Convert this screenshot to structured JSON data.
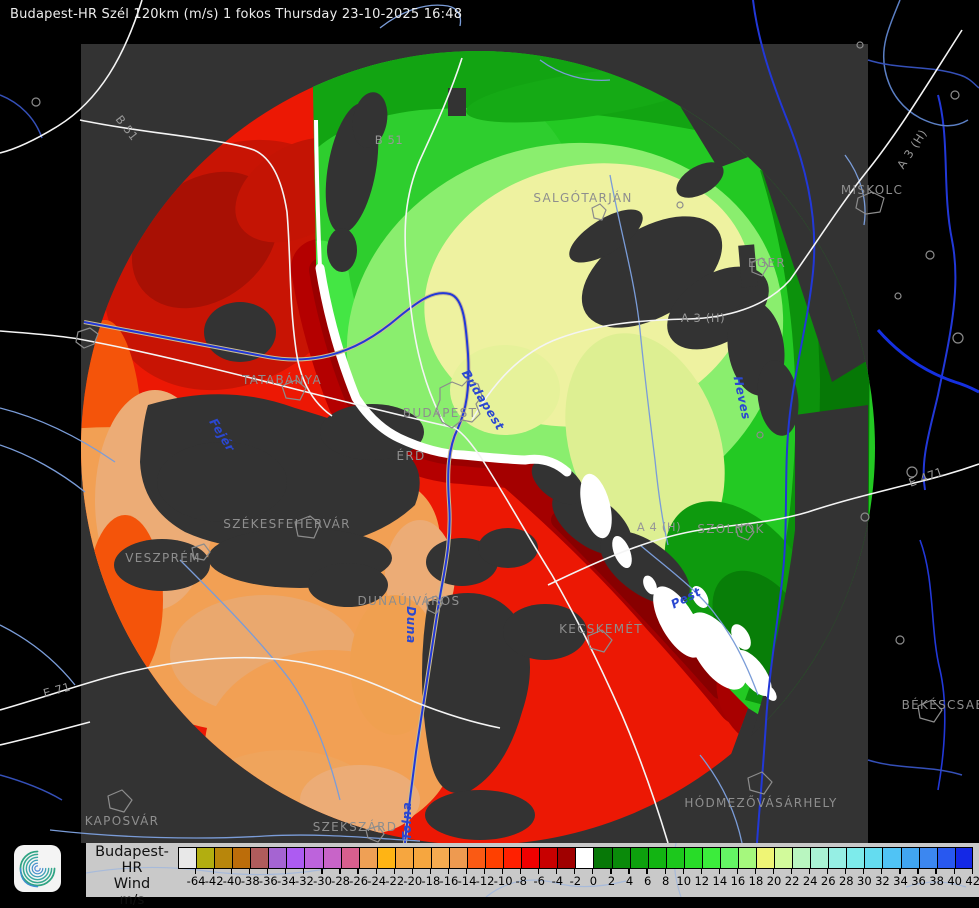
{
  "header": {
    "title": "Budapest-HR Szél 120km (m/s) 1 fokos Thursday 23-10-2025 16:48"
  },
  "map": {
    "city_labels": [
      "SALGÓTARJÁN",
      "MISKOLC",
      "EGER",
      "TATABÁNYA",
      "BUDAPEST",
      "ÉRD",
      "SZÉKESFEHÉRVÁR",
      "VESZPRÉM",
      "DUNAÚJVÁROS",
      "SZOLNOK",
      "KECSKEMÉT",
      "HÓDMEZŐVÁSÁRHELY",
      "KAPOSVÁR",
      "SZEKSZÁRD",
      "BÉKÉSCSABA"
    ],
    "road_labels": [
      "B 51",
      "B 51",
      "A 3 (H)",
      "A 3 (H)",
      "A 4 (H)",
      "E 471",
      "E 71"
    ],
    "water_labels": [
      "Budapest",
      "Pest",
      "Tolna",
      "Heves",
      "Fejér",
      "Duna"
    ]
  },
  "legend": {
    "source": "Budapest-HR",
    "product": "Wind",
    "unit": "m/s",
    "ticks": [
      "-64",
      "-42",
      "-40",
      "-38",
      "-36",
      "-34",
      "-32",
      "-30",
      "-28",
      "-26",
      "-24",
      "-22",
      "-20",
      "-18",
      "-16",
      "-14",
      "-12",
      "-10",
      "-8",
      "-6",
      "-4",
      "-2",
      "0",
      "2",
      "4",
      "6",
      "8",
      "10",
      "12",
      "14",
      "16",
      "18",
      "20",
      "22",
      "24",
      "26",
      "28",
      "30",
      "32",
      "34",
      "36",
      "38",
      "40",
      "42"
    ],
    "colors": [
      "#e8e8e8",
      "#b2ae10",
      "#b8860b",
      "#bc6d0a",
      "#b05c5c",
      "#a564d2",
      "#ad5bf2",
      "#bd63dc",
      "#c864c8",
      "#d75f8e",
      "#efa055",
      "#ffb414",
      "#f6a63f",
      "#f6a63f",
      "#f6ab50",
      "#ee9a50",
      "#fa5a14",
      "#ff4000",
      "#ff2000",
      "#f00000",
      "#c80000",
      "#a00000",
      "#ffffff",
      "#077807",
      "#0a8a0a",
      "#0da00d",
      "#12b412",
      "#1cc81c",
      "#28dc28",
      "#3cec3c",
      "#64f564",
      "#a5f87d",
      "#eff575",
      "#d2fa9b",
      "#b9f6c0",
      "#a9f3d4",
      "#96efe4",
      "#7debeb",
      "#64dcf0",
      "#50c3f5",
      "#41a5f0",
      "#3c87f0",
      "#2858f0",
      "#1428e6"
    ]
  },
  "colors": {
    "background": "#000000",
    "domain_square": "#333333",
    "zero_isodop": "#ffffff",
    "legend_bg": "#c9c9c9"
  }
}
